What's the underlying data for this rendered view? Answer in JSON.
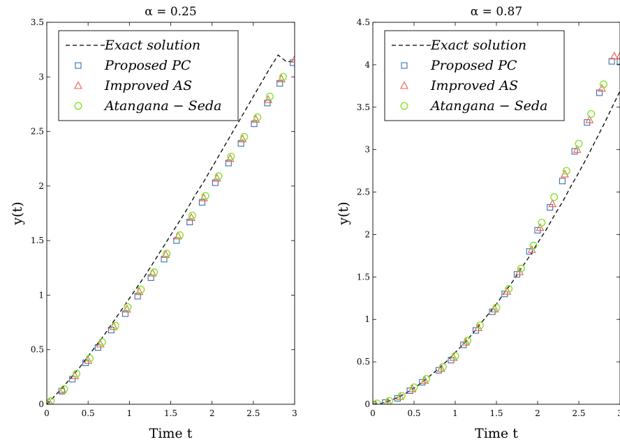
{
  "chart_data": [
    {
      "type": "line",
      "title": "α = 0.25",
      "xlabel": "Time t",
      "ylabel": "y(t)",
      "xlim": [
        0,
        3
      ],
      "ylim": [
        0,
        3.5
      ],
      "xticks": [
        0,
        0.5,
        1,
        1.5,
        2,
        2.5,
        3
      ],
      "xtick_labels": [
        "0",
        "0.5",
        "1",
        "1.5",
        "2",
        "2.5",
        "3"
      ],
      "yticks": [
        0,
        0.5,
        1,
        1.5,
        2,
        2.5,
        3,
        3.5
      ],
      "ytick_labels": [
        "0",
        "0.5",
        "1",
        "1.5",
        "2",
        "2.5",
        "3",
        "3.5"
      ],
      "grid": false,
      "legend_position": "top-left",
      "series": [
        {
          "name": "Exact solution",
          "style": "dashed-line",
          "color": "#000000",
          "x": [
            0,
            0.1,
            0.2,
            0.3,
            0.4,
            0.5,
            0.6,
            0.7,
            0.8,
            0.9,
            1.0,
            1.1,
            1.2,
            1.3,
            1.4,
            1.5,
            1.6,
            1.7,
            1.8,
            1.9,
            2.0,
            2.1,
            2.2,
            2.3,
            2.4,
            2.5,
            2.6,
            2.7,
            2.8,
            2.9,
            3.0
          ],
          "y": [
            0,
            0.08,
            0.16,
            0.25,
            0.34,
            0.44,
            0.54,
            0.64,
            0.75,
            0.86,
            0.97,
            1.08,
            1.19,
            1.31,
            1.43,
            1.55,
            1.67,
            1.79,
            1.92,
            2.04,
            2.17,
            2.3,
            2.43,
            2.56,
            2.69,
            2.82,
            2.95,
            3.08,
            3.2,
            3.14,
            3.14
          ]
        },
        {
          "name": "Proposed PC",
          "marker": "square",
          "color": "#3b6fa8",
          "x": [
            0.0,
            0.18,
            0.31,
            0.47,
            0.62,
            0.78,
            0.95,
            1.1,
            1.26,
            1.42,
            1.57,
            1.73,
            1.88,
            2.04,
            2.2,
            2.35,
            2.51,
            2.67,
            2.82,
            2.98
          ],
          "y": [
            0.0,
            0.12,
            0.23,
            0.38,
            0.52,
            0.68,
            0.83,
            0.99,
            1.16,
            1.33,
            1.5,
            1.67,
            1.85,
            2.03,
            2.21,
            2.39,
            2.57,
            2.76,
            2.94,
            3.13
          ]
        },
        {
          "name": "Improved AS",
          "marker": "triangle",
          "color": "#f05a50",
          "x": [
            0.03,
            0.19,
            0.34,
            0.5,
            0.65,
            0.81,
            0.97,
            1.12,
            1.28,
            1.44,
            1.59,
            1.75,
            1.9,
            2.06,
            2.22,
            2.37,
            2.53,
            2.68,
            2.84,
            3.0
          ],
          "y": [
            0.02,
            0.13,
            0.26,
            0.4,
            0.55,
            0.71,
            0.87,
            1.03,
            1.2,
            1.37,
            1.54,
            1.71,
            1.89,
            2.07,
            2.25,
            2.43,
            2.61,
            2.79,
            2.98,
            3.16
          ]
        },
        {
          "name": "Atangana − Seda",
          "marker": "circle",
          "color": "#7ee62a",
          "x": [
            0.05,
            0.21,
            0.36,
            0.52,
            0.67,
            0.83,
            0.98,
            1.14,
            1.3,
            1.45,
            1.61,
            1.76,
            1.92,
            2.08,
            2.23,
            2.39,
            2.55,
            2.7,
            2.86
          ],
          "y": [
            0.03,
            0.14,
            0.28,
            0.42,
            0.57,
            0.72,
            0.89,
            1.05,
            1.21,
            1.38,
            1.55,
            1.73,
            1.91,
            2.09,
            2.27,
            2.45,
            2.63,
            2.82,
            3.0
          ]
        }
      ]
    },
    {
      "type": "line",
      "title": "α = 0.87",
      "xlabel": "Time t",
      "ylabel": "y(t)",
      "xlim": [
        0,
        3
      ],
      "ylim": [
        0,
        4.5
      ],
      "xticks": [
        0,
        0.5,
        1,
        1.5,
        2,
        2.5,
        3
      ],
      "xtick_labels": [
        "0",
        "0.5",
        "1",
        "1.5",
        "2",
        "2.5",
        "3"
      ],
      "yticks": [
        0,
        0.5,
        1,
        1.5,
        2,
        2.5,
        3,
        3.5,
        4,
        4.5
      ],
      "ytick_labels": [
        "0",
        "0.5",
        "1",
        "1.5",
        "2",
        "2.5",
        "3",
        "3.5",
        "4",
        "4.5"
      ],
      "grid": false,
      "legend_position": "top-left",
      "series": [
        {
          "name": "Exact solution",
          "style": "dashed-line",
          "color": "#000000",
          "x": [
            0,
            0.1,
            0.2,
            0.3,
            0.4,
            0.5,
            0.6,
            0.7,
            0.8,
            0.9,
            1.0,
            1.1,
            1.2,
            1.3,
            1.4,
            1.5,
            1.6,
            1.7,
            1.8,
            1.9,
            2.0,
            2.1,
            2.2,
            2.3,
            2.4,
            2.5,
            2.6,
            2.7,
            2.8,
            2.9,
            3.0
          ],
          "y": [
            0,
            0.01,
            0.04,
            0.08,
            0.13,
            0.19,
            0.26,
            0.34,
            0.42,
            0.51,
            0.61,
            0.71,
            0.82,
            0.94,
            1.06,
            1.18,
            1.32,
            1.45,
            1.6,
            1.74,
            1.9,
            2.05,
            2.22,
            2.38,
            2.56,
            2.73,
            2.91,
            3.1,
            3.29,
            3.49,
            3.69
          ]
        },
        {
          "name": "Proposed PC",
          "marker": "square",
          "color": "#3b6fa8",
          "x": [
            0.0,
            0.15,
            0.3,
            0.45,
            0.6,
            0.8,
            0.95,
            1.1,
            1.25,
            1.45,
            1.6,
            1.75,
            1.9,
            2.0,
            2.15,
            2.3,
            2.45,
            2.6,
            2.75,
            2.9,
            3.0
          ],
          "y": [
            0.0,
            0.02,
            0.07,
            0.16,
            0.26,
            0.4,
            0.52,
            0.7,
            0.87,
            1.09,
            1.3,
            1.53,
            1.8,
            2.05,
            2.32,
            2.63,
            2.98,
            3.32,
            3.67,
            4.04,
            4.04
          ]
        },
        {
          "name": "Improved AS",
          "marker": "triangle",
          "color": "#f05a50",
          "x": [
            0.03,
            0.18,
            0.33,
            0.48,
            0.63,
            0.83,
            0.98,
            1.13,
            1.28,
            1.48,
            1.63,
            1.78,
            1.93,
            2.03,
            2.18,
            2.33,
            2.48,
            2.63,
            2.78,
            2.93,
            3.0
          ],
          "y": [
            0.0,
            0.03,
            0.09,
            0.18,
            0.28,
            0.42,
            0.55,
            0.73,
            0.9,
            1.12,
            1.33,
            1.56,
            1.82,
            2.08,
            2.36,
            2.71,
            3.0,
            3.35,
            3.72,
            4.1,
            4.1
          ]
        },
        {
          "name": "Atangana − Seda",
          "marker": "circle",
          "color": "#7ee62a",
          "x": [
            0.05,
            0.2,
            0.35,
            0.5,
            0.65,
            0.85,
            1.0,
            1.15,
            1.3,
            1.5,
            1.65,
            1.8,
            1.95,
            2.05,
            2.2,
            2.35,
            2.5,
            2.65,
            2.8
          ],
          "y": [
            0.01,
            0.04,
            0.1,
            0.2,
            0.3,
            0.44,
            0.57,
            0.75,
            0.93,
            1.14,
            1.36,
            1.6,
            1.87,
            2.14,
            2.44,
            2.75,
            3.07,
            3.42,
            3.77
          ]
        }
      ]
    }
  ]
}
